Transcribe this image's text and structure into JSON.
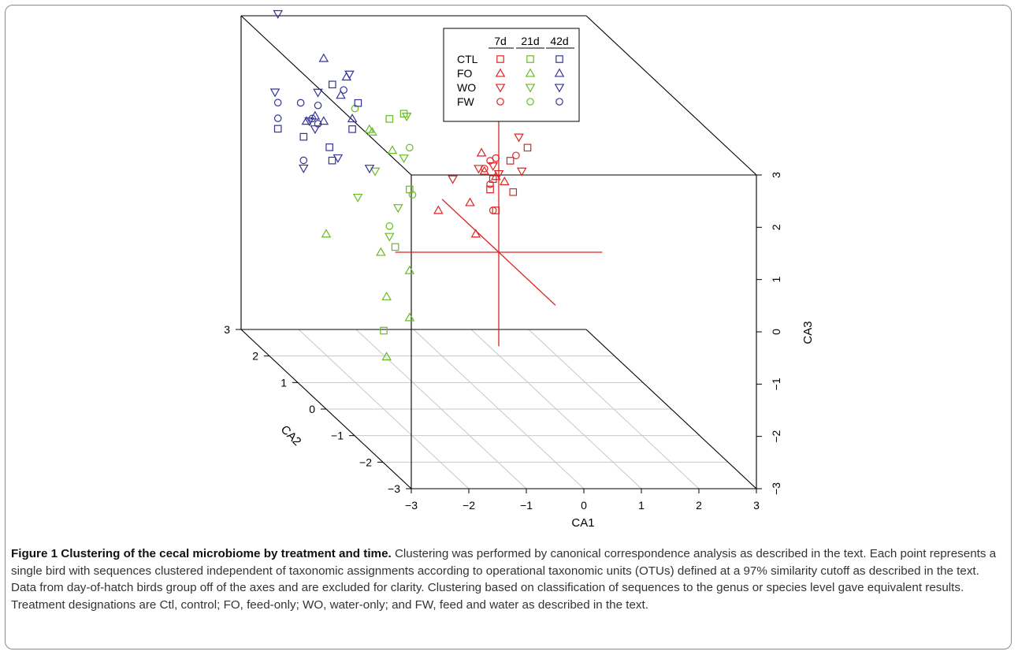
{
  "figure": {
    "caption_title": "Figure 1 Clustering of the cecal microbiome by treatment and time.",
    "caption_body": " Clustering was performed by canonical correspondence analysis as described in the text. Each point represents a single bird with sequences clustered independent of taxonomic assignments according to operational taxonomic units (OTUs) defined at a 97% similarity cutoff as described in the text. Data from day-of-hatch birds group off of the axes and are excluded for clarity. Clustering based on classification of sequences to the genus or species level gave equivalent results. Treatment designations are Ctl, control; FO, feed-only; WO, water-only; and FW, feed and water as described in the text."
  },
  "chart_data": {
    "type": "scatter",
    "projection": "3d-box",
    "title": "",
    "xlabel": "CA1",
    "ylabel": "CA2",
    "zlabel": "CA3",
    "xlim": [
      -3,
      3
    ],
    "ylim": [
      -3,
      3
    ],
    "zlim": [
      -3,
      3
    ],
    "x_ticks": [
      "−3",
      "−2",
      "−1",
      "0",
      "1",
      "2",
      "3"
    ],
    "y_ticks": [
      "−3",
      "−2",
      "−1",
      "0",
      "1",
      "2",
      "3"
    ],
    "z_ticks": [
      "−3",
      "−2",
      "−1",
      "0",
      "1",
      "2",
      "3"
    ],
    "grid": "floor",
    "legend": {
      "position": "top-center",
      "columns": [
        "7d",
        "21d",
        "42d"
      ],
      "rows": [
        {
          "label": "CTL",
          "shape": "square"
        },
        {
          "label": "FO",
          "shape": "triangle-up"
        },
        {
          "label": "WO",
          "shape": "triangle-down"
        },
        {
          "label": "FW",
          "shape": "circle"
        }
      ],
      "colors": [
        "#dd2222",
        "#66bb22",
        "#333399"
      ]
    },
    "centroid_lines_color": "#dd2222",
    "series": [
      {
        "group": "7d",
        "color": "#dd2222",
        "points": [
          {
            "treatment": "CTL",
            "x": 0.5,
            "y": 0,
            "z": 2.0
          },
          {
            "treatment": "CTL",
            "x": 0.2,
            "y": 0,
            "z": 1.75
          },
          {
            "treatment": "CTL",
            "x": 0.25,
            "y": 0,
            "z": 1.15
          },
          {
            "treatment": "CTL",
            "x": -0.05,
            "y": 0,
            "z": 0.8
          },
          {
            "treatment": "CTL",
            "x": -0.1,
            "y": 0,
            "z": 1.4
          },
          {
            "treatment": "CTL",
            "x": -0.15,
            "y": 0,
            "z": 1.2
          },
          {
            "treatment": "FO",
            "x": -1.05,
            "y": 0,
            "z": 0.8
          },
          {
            "treatment": "FO",
            "x": -0.5,
            "y": 0,
            "z": 0.95
          },
          {
            "treatment": "FO",
            "x": -0.3,
            "y": 0,
            "z": 1.9
          },
          {
            "treatment": "FO",
            "x": -0.25,
            "y": 0,
            "z": 1.55
          },
          {
            "treatment": "FO",
            "x": -0.4,
            "y": 0,
            "z": 0.35
          },
          {
            "treatment": "FO",
            "x": -0.05,
            "y": 0,
            "z": 1.45
          },
          {
            "treatment": "FO",
            "x": 0.1,
            "y": 0,
            "z": 1.35
          },
          {
            "treatment": "WO",
            "x": 0.35,
            "y": 0,
            "z": 2.2
          },
          {
            "treatment": "WO",
            "x": 0.4,
            "y": 0,
            "z": 1.55
          },
          {
            "treatment": "WO",
            "x": -0.8,
            "y": 0,
            "z": 1.4
          },
          {
            "treatment": "WO",
            "x": -0.1,
            "y": 0,
            "z": 1.65
          },
          {
            "treatment": "WO",
            "x": -0.35,
            "y": 0,
            "z": 1.6
          },
          {
            "treatment": "WO",
            "x": 0.0,
            "y": 0,
            "z": 1.5
          },
          {
            "treatment": "FW",
            "x": -0.15,
            "y": 0,
            "z": 1.75
          },
          {
            "treatment": "FW",
            "x": -0.05,
            "y": 0,
            "z": 1.8
          },
          {
            "treatment": "FW",
            "x": -0.25,
            "y": 0,
            "z": 1.6
          },
          {
            "treatment": "FW",
            "x": 0.3,
            "y": 0,
            "z": 1.85
          },
          {
            "treatment": "FW",
            "x": -0.15,
            "y": 0,
            "z": 1.3
          },
          {
            "treatment": "FW",
            "x": -0.1,
            "y": 0,
            "z": 0.8
          }
        ]
      },
      {
        "group": "21d",
        "color": "#66bb22",
        "points": [
          {
            "treatment": "CTL",
            "x": -1.65,
            "y": 0,
            "z": 2.65
          },
          {
            "treatment": "CTL",
            "x": -1.9,
            "y": 0,
            "z": 2.55
          },
          {
            "treatment": "CTL",
            "x": -1.55,
            "y": 0,
            "z": 1.2
          },
          {
            "treatment": "CTL",
            "x": -1.8,
            "y": 0,
            "z": 0.1
          },
          {
            "treatment": "CTL",
            "x": -2.0,
            "y": 0,
            "z": -1.5
          },
          {
            "treatment": "FO",
            "x": -2.25,
            "y": 0,
            "z": 2.35
          },
          {
            "treatment": "FO",
            "x": -1.85,
            "y": 0,
            "z": 1.95
          },
          {
            "treatment": "FO",
            "x": -2.2,
            "y": 0,
            "z": 2.3
          },
          {
            "treatment": "FO",
            "x": -3.0,
            "y": 0,
            "z": 0.35
          },
          {
            "treatment": "FO",
            "x": -2.05,
            "y": 0,
            "z": 0.0
          },
          {
            "treatment": "FO",
            "x": -1.55,
            "y": 0,
            "z": -0.35
          },
          {
            "treatment": "FO",
            "x": -1.95,
            "y": 0,
            "z": -0.85
          },
          {
            "treatment": "FO",
            "x": -1.55,
            "y": 0,
            "z": -1.25
          },
          {
            "treatment": "FO",
            "x": -1.95,
            "y": 0,
            "z": -2.0
          },
          {
            "treatment": "WO",
            "x": -1.6,
            "y": 0,
            "z": 2.6
          },
          {
            "treatment": "WO",
            "x": -1.65,
            "y": 0,
            "z": 1.8
          },
          {
            "treatment": "WO",
            "x": -2.15,
            "y": 0,
            "z": 1.55
          },
          {
            "treatment": "WO",
            "x": -2.45,
            "y": 0,
            "z": 1.05
          },
          {
            "treatment": "WO",
            "x": -1.75,
            "y": 0,
            "z": 0.85
          },
          {
            "treatment": "WO",
            "x": -1.9,
            "y": 0,
            "z": 0.3
          },
          {
            "treatment": "FW",
            "x": -2.5,
            "y": 0,
            "z": 2.75
          },
          {
            "treatment": "FW",
            "x": -1.55,
            "y": 0,
            "z": 2.0
          },
          {
            "treatment": "FW",
            "x": -1.5,
            "y": 0,
            "z": 1.1
          },
          {
            "treatment": "FW",
            "x": -1.9,
            "y": 0,
            "z": 0.5
          }
        ]
      },
      {
        "group": "42d",
        "color": "#333399",
        "points": [
          {
            "treatment": "CTL",
            "x": -2.4,
            "y": 1.0,
            "z": 2.7
          },
          {
            "treatment": "CTL",
            "x": -2.2,
            "y": 0.5,
            "z": 2.6
          },
          {
            "treatment": "CTL",
            "x": -2.3,
            "y": 0.5,
            "z": 2.1
          },
          {
            "treatment": "CTL",
            "x": -2.45,
            "y": 1.0,
            "z": 1.5
          },
          {
            "treatment": "CTL",
            "x": -3.1,
            "y": 1.5,
            "z": 1.6
          },
          {
            "treatment": "CTL",
            "x": -2.9,
            "y": 1.0,
            "z": 1.7
          },
          {
            "treatment": "CTL",
            "x": -2.65,
            "y": 0.5,
            "z": 1.5
          },
          {
            "treatment": "FO",
            "x": -2.55,
            "y": 1.0,
            "z": 3.2
          },
          {
            "treatment": "FO",
            "x": -2.4,
            "y": 0.5,
            "z": 3.1
          },
          {
            "treatment": "FO",
            "x": -2.5,
            "y": 0.5,
            "z": 2.75
          },
          {
            "treatment": "FO",
            "x": -2.3,
            "y": 0.5,
            "z": 2.3
          },
          {
            "treatment": "FO",
            "x": -2.7,
            "y": 1.0,
            "z": 2.1
          },
          {
            "treatment": "FO",
            "x": -2.85,
            "y": 1.0,
            "z": 2.0
          },
          {
            "treatment": "FO",
            "x": -2.55,
            "y": 1.0,
            "z": 2.0
          },
          {
            "treatment": "WO",
            "x": -3.1,
            "y": 1.5,
            "z": 3.8
          },
          {
            "treatment": "WO",
            "x": -2.35,
            "y": 0.5,
            "z": 3.15
          },
          {
            "treatment": "WO",
            "x": -2.65,
            "y": 1.0,
            "z": 2.55
          },
          {
            "treatment": "WO",
            "x": -3.15,
            "y": 1.5,
            "z": 2.3
          },
          {
            "treatment": "WO",
            "x": -2.8,
            "y": 1.0,
            "z": 2.0
          },
          {
            "treatment": "WO",
            "x": -2.7,
            "y": 1.0,
            "z": 1.85
          },
          {
            "treatment": "WO",
            "x": -2.55,
            "y": 0.5,
            "z": 1.55
          },
          {
            "treatment": "WO",
            "x": -2.0,
            "y": 0.5,
            "z": 1.35
          },
          {
            "treatment": "WO",
            "x": -2.9,
            "y": 1.0,
            "z": 1.1
          },
          {
            "treatment": "FW",
            "x": -2.45,
            "y": 0.5,
            "z": 2.85
          },
          {
            "treatment": "FW",
            "x": -2.95,
            "y": 1.0,
            "z": 2.35
          },
          {
            "treatment": "FW",
            "x": -3.1,
            "y": 1.5,
            "z": 2.1
          },
          {
            "treatment": "FW",
            "x": -2.65,
            "y": 1.0,
            "z": 2.3
          },
          {
            "treatment": "FW",
            "x": -2.75,
            "y": 1.0,
            "z": 2.05
          },
          {
            "treatment": "FW",
            "x": -2.65,
            "y": 1.0,
            "z": 1.95
          },
          {
            "treatment": "FW",
            "x": -3.1,
            "y": 1.5,
            "z": 1.8
          },
          {
            "treatment": "FW",
            "x": -2.9,
            "y": 1.0,
            "z": 1.25
          }
        ]
      }
    ]
  }
}
